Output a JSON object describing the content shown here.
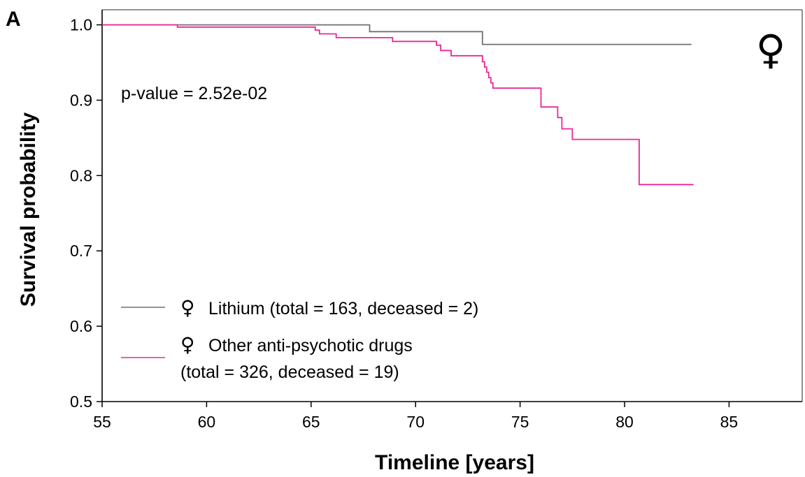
{
  "panel_label": "A",
  "female_symbol": "♀",
  "annotation": "p-value = 2.52e-02",
  "legend": {
    "lithium_line1": "Lithium (total = 163, deceased = 2)",
    "other_line1": "Other anti-psychotic drugs",
    "other_line2": "(total = 326, deceased = 19)"
  },
  "colors": {
    "lithium": "#707070",
    "other": "#e8289a",
    "axis": "#000000"
  },
  "chart_data": {
    "type": "line",
    "step": true,
    "xlabel": "Timeline [years]",
    "ylabel": "Survival probability",
    "xlim": [
      55,
      88.5
    ],
    "ylim": [
      0.5,
      1.02
    ],
    "xticks": [
      55,
      60,
      65,
      70,
      75,
      80,
      85
    ],
    "yticks": [
      0.5,
      0.6,
      0.7,
      0.8,
      0.9,
      1.0
    ],
    "xtick_labels": [
      "55",
      "60",
      "65",
      "70",
      "75",
      "80",
      "85"
    ],
    "ytick_labels": [
      "0.5",
      "0.6",
      "0.7",
      "0.8",
      "0.9",
      "1.0"
    ],
    "series": [
      {
        "name": "Lithium (total = 163, deceased = 2)",
        "x": [
          55,
          67.8,
          73.2,
          83.2
        ],
        "y": [
          1.0,
          0.991,
          0.974,
          0.974
        ]
      },
      {
        "name": "Other anti-psychotic drugs (total = 326, deceased = 19)",
        "x": [
          55,
          58.6,
          65.2,
          65.4,
          66.2,
          68.9,
          71.0,
          71.2,
          71.7,
          73.2,
          73.3,
          73.4,
          73.5,
          73.6,
          73.7,
          73.8,
          76.0,
          76.8,
          77.0,
          77.5,
          80.7,
          83.3
        ],
        "y": [
          1.0,
          0.997,
          0.993,
          0.988,
          0.983,
          0.978,
          0.973,
          0.966,
          0.959,
          0.951,
          0.944,
          0.937,
          0.93,
          0.923,
          0.916,
          0.916,
          0.891,
          0.877,
          0.862,
          0.848,
          0.788,
          0.788
        ]
      }
    ]
  }
}
